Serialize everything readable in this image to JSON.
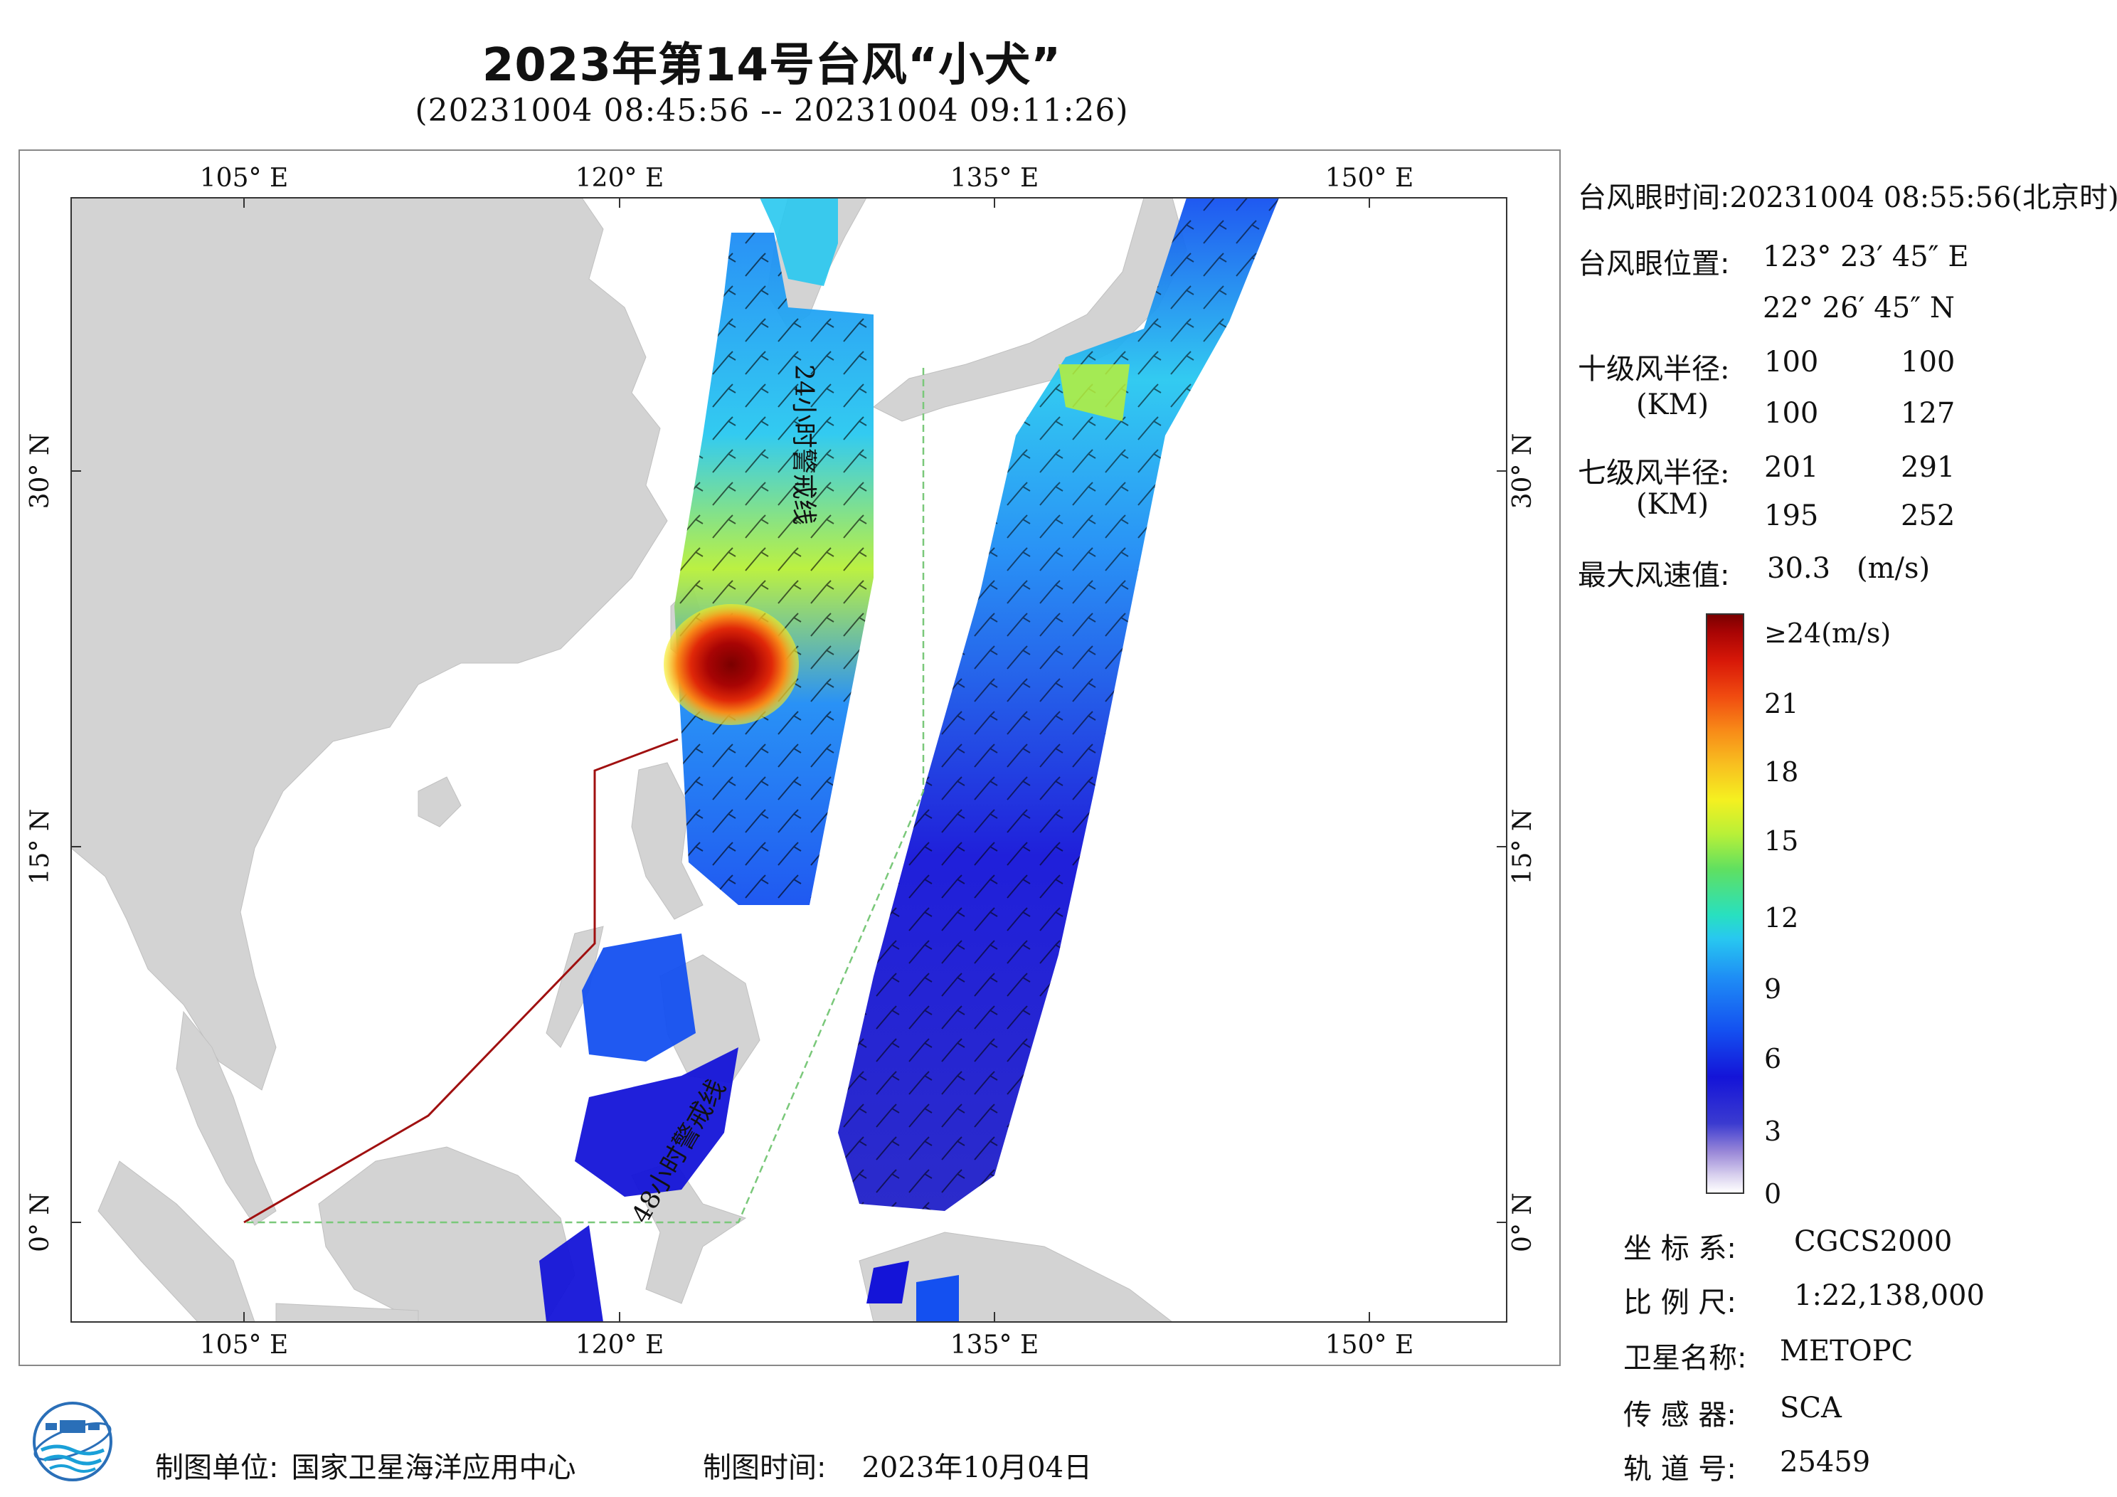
{
  "title": "2023年第14号台风“小犬”",
  "subtitle": "(20231004 08:45:56 -- 20231004 09:11:26)",
  "map": {
    "lon_ticks": [
      "105° E",
      "120° E",
      "135° E",
      "150° E"
    ],
    "lat_ticks": [
      "30° N",
      "15° N",
      "0° N"
    ],
    "track_label_24h": "24小时警戒线",
    "track_label_48h": "48小时警戒线",
    "colors": {
      "land": "#d3d3d3",
      "sea": "#ffffff",
      "boundary": "#a01010",
      "warning_line": "#7ac87a"
    }
  },
  "info": {
    "eye_time_label": "台风眼时间:",
    "eye_time_value": "20231004 08:55:56(北京时)",
    "eye_pos_label": "台风眼位置:",
    "eye_lon": "123° 23′ 45″ E",
    "eye_lat": "22° 26′ 45″ N",
    "r10_label": "十级风半径:",
    "r10_unit": "(KM)",
    "r10_values": [
      "100",
      "100",
      "100",
      "127"
    ],
    "r7_label": "七级风半径:",
    "r7_unit": "(KM)",
    "r7_values": [
      "201",
      "291",
      "195",
      "252"
    ],
    "max_wind_label": "最大风速值:",
    "max_wind_value": "30.3",
    "max_wind_unit": "(m/s)"
  },
  "colorbar": {
    "ticks": [
      "≥24(m/s)",
      "21",
      "18",
      "15",
      "12",
      "9",
      "6",
      "3",
      "0"
    ]
  },
  "meta": {
    "crs_label": "坐 标 系:",
    "crs_value": "CGCS2000",
    "scale_label": "比 例 尺:",
    "scale_value": "1:22,138,000",
    "satellite_label": "卫星名称:",
    "satellite_value": "METOPC",
    "sensor_label": "传 感 器:",
    "sensor_value": "SCA",
    "orbit_label": "轨 道 号:",
    "orbit_value": "25459"
  },
  "footer": {
    "org_label": "制图单位:",
    "org_value": "国家卫星海洋应用中心",
    "date_label": "制图时间:",
    "date_value": "2023年10月04日"
  }
}
